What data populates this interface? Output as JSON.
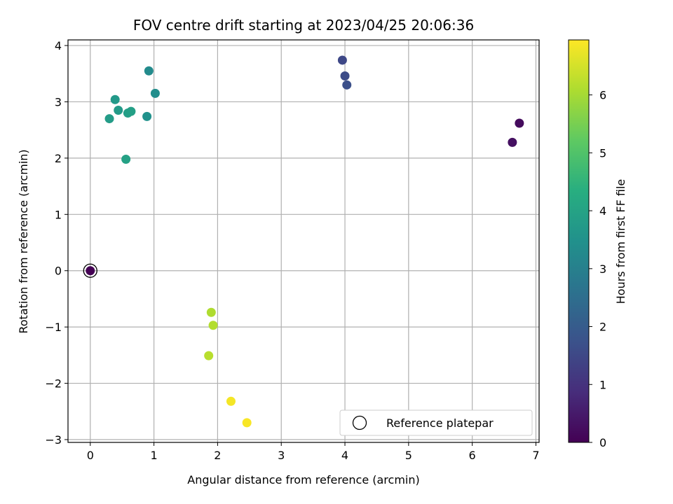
{
  "chart_data": {
    "type": "scatter",
    "title": "FOV centre drift starting at 2023/04/25 20:06:36",
    "xlabel": "Angular distance from reference (arcmin)",
    "ylabel": "Rotation from reference (arcmin)",
    "xlim": [
      -0.35,
      7.05
    ],
    "ylim": [
      -3.05,
      4.1
    ],
    "xticks": [
      0,
      1,
      2,
      3,
      4,
      5,
      6,
      7
    ],
    "yticks": [
      -3,
      -2,
      -1,
      0,
      1,
      2,
      3,
      4
    ],
    "grid": true,
    "colormap": "viridis",
    "colorbar": {
      "label": "Hours from first FF file",
      "range": [
        0,
        6.95
      ],
      "ticks": [
        0,
        1,
        2,
        3,
        4,
        5,
        6
      ]
    },
    "reference": {
      "label": "Reference platepar",
      "x": 0,
      "y": 0
    },
    "legend": {
      "position": "lower-right",
      "entries": [
        "Reference platepar"
      ]
    },
    "points": [
      {
        "x": 0.0,
        "y": 0.0,
        "hours": 0.0
      },
      {
        "x": 6.74,
        "y": 2.62,
        "hours": 0.2
      },
      {
        "x": 6.63,
        "y": 2.28,
        "hours": 0.3
      },
      {
        "x": 3.96,
        "y": 3.74,
        "hours": 1.5
      },
      {
        "x": 4.0,
        "y": 3.46,
        "hours": 1.6
      },
      {
        "x": 4.03,
        "y": 3.3,
        "hours": 1.7
      },
      {
        "x": 0.92,
        "y": 3.55,
        "hours": 3.3
      },
      {
        "x": 1.02,
        "y": 3.15,
        "hours": 3.4
      },
      {
        "x": 0.89,
        "y": 2.74,
        "hours": 3.5
      },
      {
        "x": 0.39,
        "y": 3.04,
        "hours": 3.7
      },
      {
        "x": 0.44,
        "y": 2.85,
        "hours": 3.75
      },
      {
        "x": 0.3,
        "y": 2.7,
        "hours": 3.8
      },
      {
        "x": 0.59,
        "y": 2.8,
        "hours": 3.85
      },
      {
        "x": 0.64,
        "y": 2.83,
        "hours": 3.9
      },
      {
        "x": 0.56,
        "y": 1.98,
        "hours": 3.95
      },
      {
        "x": 1.9,
        "y": -0.74,
        "hours": 6.1
      },
      {
        "x": 1.93,
        "y": -0.97,
        "hours": 6.15
      },
      {
        "x": 1.86,
        "y": -1.51,
        "hours": 6.2
      },
      {
        "x": 2.21,
        "y": -2.32,
        "hours": 6.85
      },
      {
        "x": 2.46,
        "y": -2.7,
        "hours": 6.9
      }
    ]
  }
}
